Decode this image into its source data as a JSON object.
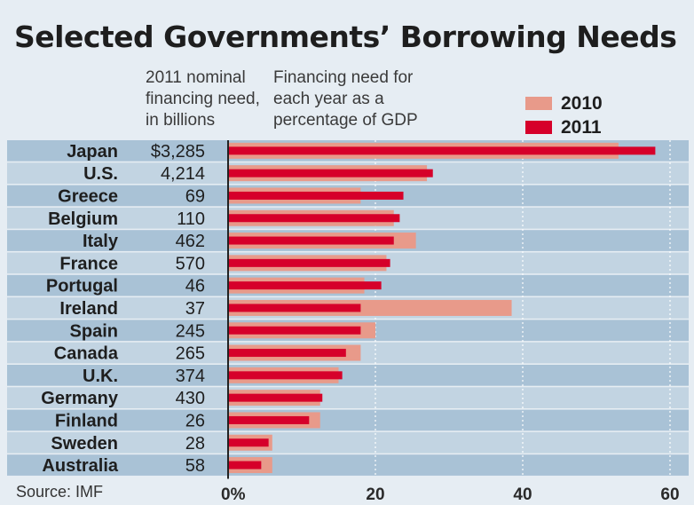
{
  "header": {
    "title": "Selected Governments’ Borrowing Needs",
    "left_note": "2011 nominal\nfinancing need,\nin billions",
    "right_note": "Financing need for\neach year as a\npercentage of GDP"
  },
  "legend": [
    {
      "label": "2010",
      "color": "#e89a8a"
    },
    {
      "label": "2011",
      "color": "#d6002a"
    }
  ],
  "source": "Source: IMF",
  "colors": {
    "row_even": "#a9c2d6",
    "row_odd": "#c2d4e2",
    "bar_2010": "#e89a8a",
    "bar_2011": "#d6002a",
    "axis": "#222222",
    "grid": "#ffffff"
  },
  "chart_data": {
    "type": "bar",
    "orientation": "horizontal",
    "categories": [
      "Japan",
      "U.S.",
      "Greece",
      "Belgium",
      "Italy",
      "France",
      "Portugal",
      "Ireland",
      "Spain",
      "Canada",
      "U.K.",
      "Germany",
      "Finland",
      "Sweden",
      "Australia"
    ],
    "nominal_labels": [
      "$3,285",
      "4,214",
      "69",
      "110",
      "462",
      "570",
      "46",
      "37",
      "245",
      "265",
      "374",
      "430",
      "26",
      "28",
      "58"
    ],
    "series": [
      {
        "name": "2010",
        "values": [
          53,
          27,
          18,
          22.5,
          25.5,
          21.5,
          18.5,
          38.5,
          20,
          18,
          15,
          12.5,
          12.5,
          6,
          6
        ]
      },
      {
        "name": "2011",
        "values": [
          58,
          27.8,
          23.8,
          23.3,
          22.5,
          22,
          20.8,
          18,
          18,
          16,
          15.5,
          12.8,
          11,
          5.5,
          4.5
        ]
      }
    ],
    "xlim": [
      0,
      60
    ],
    "xticks": [
      "0%",
      "20",
      "40",
      "60"
    ],
    "xtick_values": [
      0,
      20,
      40,
      60
    ],
    "grid": true,
    "legend_position": "top-right"
  }
}
